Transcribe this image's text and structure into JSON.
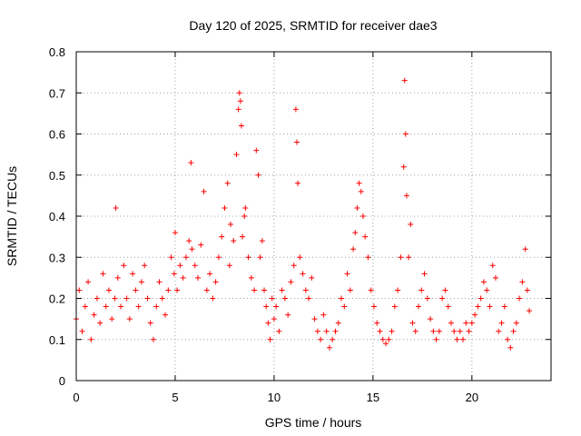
{
  "chart_data": {
    "type": "scatter",
    "title": "Day 120 of 2025, SRMTID for receiver dae3",
    "xlabel": "GPS time / hours",
    "ylabel": "SRMTID / TECUs",
    "xlim": [
      0,
      24
    ],
    "ylim": [
      0,
      0.8
    ],
    "xticks": [
      0,
      5,
      10,
      15,
      20
    ],
    "yticks": [
      0,
      0.1,
      0.2,
      0.3,
      0.4,
      0.5,
      0.6,
      0.7,
      0.8
    ],
    "xtick_labels": [
      "0",
      "5",
      "10",
      "15",
      "20"
    ],
    "ytick_labels": [
      "0",
      "0.1",
      "0.2",
      "0.3",
      "0.4",
      "0.5",
      "0.6",
      "0.7",
      "0.8"
    ],
    "grid": true,
    "marker": "+",
    "color": "#ff0000",
    "series": [
      {
        "name": "SRMTID",
        "x": [
          0.0,
          0.15,
          0.3,
          0.45,
          0.6,
          0.75,
          0.9,
          1.05,
          1.2,
          1.35,
          1.5,
          1.65,
          1.8,
          1.95,
          2.0,
          2.1,
          2.25,
          2.4,
          2.55,
          2.7,
          2.85,
          3.0,
          3.15,
          3.3,
          3.45,
          3.6,
          3.75,
          3.9,
          4.05,
          4.2,
          4.35,
          4.5,
          4.65,
          4.8,
          4.95,
          5.0,
          5.1,
          5.25,
          5.4,
          5.55,
          5.7,
          5.8,
          5.85,
          6.0,
          6.15,
          6.3,
          6.45,
          6.6,
          6.75,
          6.9,
          7.05,
          7.2,
          7.35,
          7.5,
          7.65,
          7.75,
          7.8,
          7.95,
          8.1,
          8.2,
          8.25,
          8.3,
          8.35,
          8.4,
          8.5,
          8.55,
          8.7,
          8.85,
          9.0,
          9.1,
          9.2,
          9.3,
          9.4,
          9.5,
          9.6,
          9.7,
          9.8,
          9.9,
          10.0,
          10.1,
          10.25,
          10.4,
          10.55,
          10.7,
          10.85,
          11.0,
          11.1,
          11.15,
          11.2,
          11.3,
          11.45,
          11.6,
          11.75,
          11.9,
          12.05,
          12.2,
          12.35,
          12.5,
          12.65,
          12.8,
          12.95,
          13.1,
          13.25,
          13.4,
          13.55,
          13.7,
          13.85,
          14.0,
          14.1,
          14.2,
          14.3,
          14.4,
          14.5,
          14.6,
          14.75,
          14.9,
          15.05,
          15.2,
          15.35,
          15.5,
          15.65,
          15.8,
          15.95,
          16.1,
          16.25,
          16.4,
          16.55,
          16.6,
          16.65,
          16.7,
          16.8,
          16.9,
          17.0,
          17.15,
          17.3,
          17.45,
          17.6,
          17.75,
          17.9,
          18.05,
          18.2,
          18.35,
          18.5,
          18.65,
          18.8,
          18.95,
          19.1,
          19.25,
          19.4,
          19.55,
          19.7,
          19.85,
          20.0,
          20.15,
          20.3,
          20.45,
          20.6,
          20.75,
          20.9,
          21.05,
          21.2,
          21.35,
          21.5,
          21.65,
          21.8,
          21.95,
          22.1,
          22.25,
          22.4,
          22.55,
          22.7,
          22.8,
          22.9
        ],
        "y": [
          0.15,
          0.22,
          0.12,
          0.18,
          0.24,
          0.1,
          0.16,
          0.2,
          0.14,
          0.26,
          0.18,
          0.22,
          0.15,
          0.2,
          0.42,
          0.25,
          0.18,
          0.28,
          0.2,
          0.15,
          0.26,
          0.22,
          0.18,
          0.24,
          0.28,
          0.2,
          0.14,
          0.1,
          0.18,
          0.24,
          0.2,
          0.16,
          0.22,
          0.3,
          0.26,
          0.36,
          0.22,
          0.28,
          0.25,
          0.3,
          0.34,
          0.53,
          0.32,
          0.28,
          0.25,
          0.33,
          0.46,
          0.22,
          0.26,
          0.2,
          0.24,
          0.3,
          0.35,
          0.42,
          0.48,
          0.28,
          0.38,
          0.34,
          0.55,
          0.66,
          0.7,
          0.68,
          0.62,
          0.35,
          0.4,
          0.42,
          0.3,
          0.25,
          0.22,
          0.56,
          0.5,
          0.3,
          0.34,
          0.22,
          0.18,
          0.14,
          0.1,
          0.2,
          0.15,
          0.18,
          0.12,
          0.22,
          0.2,
          0.16,
          0.24,
          0.28,
          0.66,
          0.58,
          0.48,
          0.3,
          0.26,
          0.22,
          0.2,
          0.25,
          0.15,
          0.12,
          0.1,
          0.16,
          0.12,
          0.08,
          0.1,
          0.12,
          0.14,
          0.2,
          0.18,
          0.26,
          0.22,
          0.32,
          0.36,
          0.42,
          0.48,
          0.46,
          0.4,
          0.35,
          0.3,
          0.22,
          0.18,
          0.14,
          0.12,
          0.1,
          0.09,
          0.1,
          0.12,
          0.18,
          0.22,
          0.3,
          0.52,
          0.73,
          0.6,
          0.45,
          0.3,
          0.38,
          0.14,
          0.12,
          0.18,
          0.22,
          0.26,
          0.2,
          0.15,
          0.12,
          0.1,
          0.12,
          0.2,
          0.22,
          0.18,
          0.14,
          0.12,
          0.1,
          0.12,
          0.1,
          0.14,
          0.12,
          0.14,
          0.16,
          0.18,
          0.2,
          0.24,
          0.22,
          0.18,
          0.28,
          0.25,
          0.12,
          0.14,
          0.18,
          0.1,
          0.08,
          0.12,
          0.14,
          0.2,
          0.24,
          0.32,
          0.22,
          0.17
        ]
      }
    ]
  }
}
